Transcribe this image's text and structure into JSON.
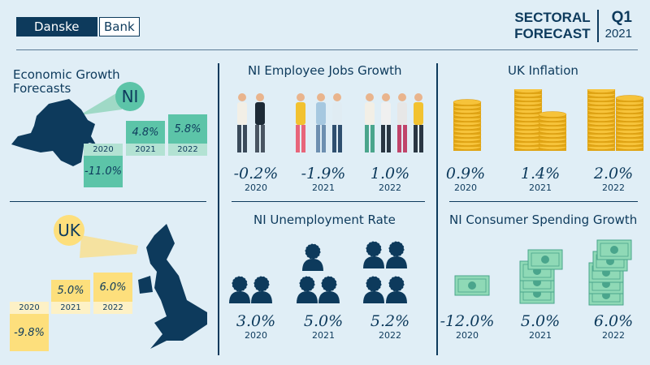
{
  "header": {
    "logo_left": "Danske",
    "logo_right": "Bank",
    "title_line1": "SECTORAL",
    "title_line2": "FORECAST",
    "quarter": "Q1",
    "year": "2021"
  },
  "growth": {
    "title_line1": "Economic Growth",
    "title_line2": "Forecasts",
    "ni": {
      "badge": "NI",
      "items": [
        {
          "year": "2020",
          "value": "-11.0%"
        },
        {
          "year": "2021",
          "value": "4.8%"
        },
        {
          "year": "2022",
          "value": "5.8%"
        }
      ]
    },
    "uk": {
      "badge": "UK",
      "items": [
        {
          "year": "2020",
          "value": "-9.8%"
        },
        {
          "year": "2021",
          "value": "5.0%"
        },
        {
          "year": "2022",
          "value": "6.0%"
        }
      ]
    }
  },
  "jobs": {
    "title": "NI Employee Jobs Growth",
    "items": [
      {
        "year": "2020",
        "value": "-0.2%"
      },
      {
        "year": "2021",
        "value": "-1.9%"
      },
      {
        "year": "2022",
        "value": "1.0%"
      }
    ]
  },
  "unemployment": {
    "title": "NI Unemployment Rate",
    "items": [
      {
        "year": "2020",
        "value": "3.0%"
      },
      {
        "year": "2021",
        "value": "5.0%"
      },
      {
        "year": "2022",
        "value": "5.2%"
      }
    ]
  },
  "inflation": {
    "title": "UK Inflation",
    "items": [
      {
        "year": "2020",
        "value": "0.9%"
      },
      {
        "year": "2021",
        "value": "1.4%"
      },
      {
        "year": "2022",
        "value": "2.0%"
      }
    ]
  },
  "spending": {
    "title": "NI Consumer Spending Growth",
    "items": [
      {
        "year": "2020",
        "value": "-12.0%"
      },
      {
        "year": "2021",
        "value": "5.0%"
      },
      {
        "year": "2022",
        "value": "6.0%"
      }
    ]
  },
  "colors": {
    "navy": "#0d3a5c",
    "teal": "#5cc4a8",
    "teal_light": "#b3e2d3",
    "yellow": "#fddf7c",
    "yellow_light": "#fdf1c6",
    "coin": "#f3b81d",
    "money": "#8fd9b6",
    "background": "#e0eef6"
  }
}
